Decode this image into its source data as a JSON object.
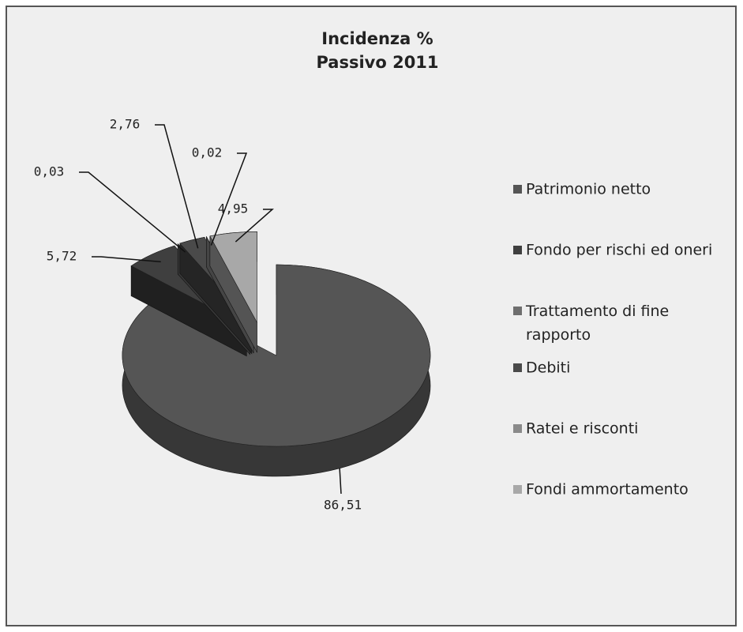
{
  "chart_data": {
    "type": "pie",
    "title": "Incidenza %",
    "subtitle": "Passivo 2011",
    "categories": [
      "Patrimonio netto",
      "Fondo per rischi ed oneri",
      "Trattamento di fine rapporto",
      "Debiti",
      "Ratei e risconti",
      "Fondi ammortamento"
    ],
    "values": [
      86.51,
      5.72,
      0.03,
      2.76,
      0.02,
      4.95
    ],
    "value_labels": [
      "86,51",
      "5,72",
      "0,03",
      "2,76",
      "0,02",
      "4,95"
    ],
    "colors": [
      "#555555",
      "#3f3f3f",
      "#6e6e6e",
      "#4a4a4a",
      "#8a8a8a",
      "#a8a8a8"
    ],
    "legend": "right"
  }
}
